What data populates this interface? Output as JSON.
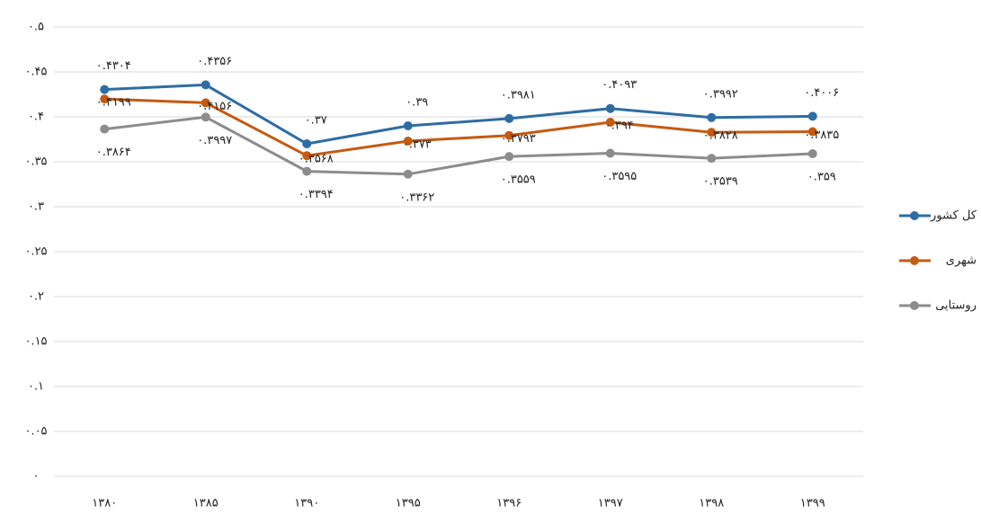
{
  "chart_data": {
    "type": "line",
    "categories": [
      "۱۳۸۰",
      "۱۳۸۵",
      "۱۳۹۰",
      "۱۳۹۵",
      "۱۳۹۶",
      "۱۳۹۷",
      "۱۳۹۸",
      "۱۳۹۹"
    ],
    "series": [
      {
        "name": "کل کشور",
        "color": "#2e6ca4",
        "values": [
          0.4304,
          0.4356,
          0.37,
          0.39,
          0.3981,
          0.4093,
          0.3992,
          0.4006
        ],
        "value_labels": [
          "۰.۴۳۰۴",
          "۰.۴۳۵۶",
          "۰.۳۷",
          "۰.۳۹",
          "۰.۳۹۸۱",
          "۰.۴۰۹۳",
          "۰.۳۹۹۲",
          "۰.۴۰۰۶"
        ]
      },
      {
        "name": "شهری",
        "color": "#c55a11",
        "values": [
          0.4199,
          0.4156,
          0.3568,
          0.373,
          0.3793,
          0.394,
          0.3828,
          0.3835
        ],
        "value_labels": [
          "۰.۴۱۹۹",
          "۰.۴۱۵۶",
          "۰.۳۵۶۸",
          "۰.۳۷۳",
          "۰.۳۷۹۳",
          "۰.۳۹۴",
          "۰.۳۸۲۸",
          "۰.۳۸۳۵"
        ]
      },
      {
        "name": "روستایی",
        "color": "#8c8c8c",
        "values": [
          0.3864,
          0.3997,
          0.3394,
          0.3362,
          0.3559,
          0.3595,
          0.3539,
          0.359
        ],
        "value_labels": [
          "۰.۳۸۶۴",
          "۰.۳۹۹۷",
          "۰.۳۳۹۴",
          "۰.۳۳۶۲",
          "۰.۳۵۵۹",
          "۰.۳۵۹۵",
          "۰.۳۵۳۹",
          "۰.۳۵۹"
        ]
      }
    ],
    "ylim": [
      0,
      0.5
    ],
    "yticks": [
      {
        "value": 0,
        "label": "۰"
      },
      {
        "value": 0.05,
        "label": "۰.۰۵"
      },
      {
        "value": 0.1,
        "label": "۰.۱"
      },
      {
        "value": 0.15,
        "label": "۰.۱۵"
      },
      {
        "value": 0.2,
        "label": "۰.۲"
      },
      {
        "value": 0.25,
        "label": "۰.۲۵"
      },
      {
        "value": 0.3,
        "label": "۰.۳"
      },
      {
        "value": 0.35,
        "label": "۰.۳۵"
      },
      {
        "value": 0.4,
        "label": "۰.۴"
      },
      {
        "value": 0.45,
        "label": "۰.۴۵"
      },
      {
        "value": 0.5,
        "label": "۰.۵"
      }
    ],
    "grid": true,
    "legend": "right"
  }
}
